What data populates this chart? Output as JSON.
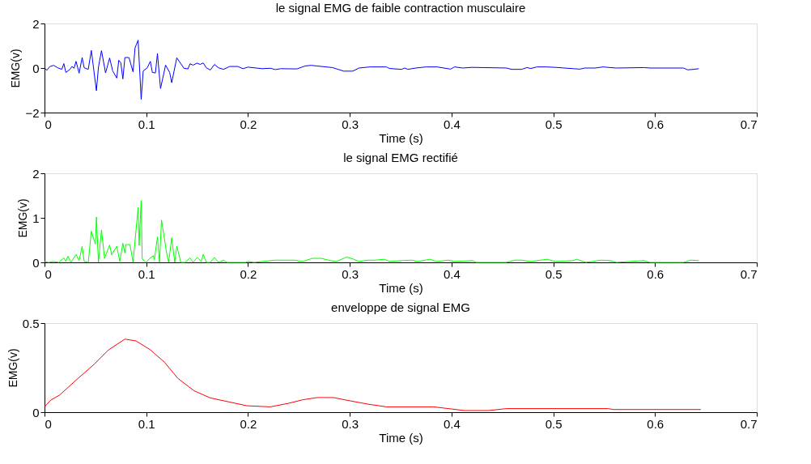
{
  "chart_data": [
    {
      "type": "line",
      "title": "le signal EMG de faible contraction musculaire",
      "xlabel": "Time (s)",
      "ylabel": "EMG(v)",
      "xlim": [
        0,
        0.7
      ],
      "xticks": [
        0,
        0.1,
        0.2,
        0.3,
        0.4,
        0.5,
        0.6,
        0.7
      ],
      "ylim": [
        -2,
        2
      ],
      "yticks": [
        -2,
        0,
        2
      ],
      "series": [
        {
          "color": "#0000ff",
          "x": [
            0,
            0.0024,
            0.005,
            0.009,
            0.013,
            0.017,
            0.019,
            0.021,
            0.025,
            0.027,
            0.029,
            0.031,
            0.034,
            0.037,
            0.039,
            0.043,
            0.046,
            0.051,
            0.053,
            0.056,
            0.06,
            0.064,
            0.067,
            0.071,
            0.073,
            0.075,
            0.077,
            0.079,
            0.083,
            0.087,
            0.089,
            0.092,
            0.095,
            0.097,
            0.101,
            0.104,
            0.106,
            0.109,
            0.111,
            0.114,
            0.119,
            0.123,
            0.125,
            0.13,
            0.137,
            0.141,
            0.143,
            0.146,
            0.15,
            0.153,
            0.156,
            0.159,
            0.163,
            0.167,
            0.171,
            0.176,
            0.182,
            0.19,
            0.195,
            0.2,
            0.206,
            0.214,
            0.222,
            0.227,
            0.232,
            0.248,
            0.256,
            0.262,
            0.268,
            0.283,
            0.294,
            0.303,
            0.309,
            0.32,
            0.336,
            0.339,
            0.351,
            0.354,
            0.357,
            0.365,
            0.375,
            0.386,
            0.399,
            0.403,
            0.411,
            0.42,
            0.454,
            0.459,
            0.469,
            0.474,
            0.478,
            0.484,
            0.493,
            0.502,
            0.52,
            0.526,
            0.531,
            0.541,
            0.549,
            0.556,
            0.562,
            0.589,
            0.595,
            0.628,
            0.632,
            0.638,
            0.643
          ],
          "values": [
            0,
            -0.1,
            0.06,
            0.12,
            0.01,
            -0.06,
            0.2,
            -0.2,
            -0.06,
            0.07,
            -0.01,
            0.3,
            -0.23,
            0.47,
            0.01,
            -0.06,
            0.79,
            -1.02,
            0.04,
            0.78,
            -0.22,
            0.45,
            -0.13,
            -0.45,
            0.35,
            0.23,
            -0.49,
            0.47,
            0.47,
            -0.17,
            0.91,
            1.25,
            -1.41,
            -0.13,
            0.01,
            0.3,
            -0.2,
            -0.22,
            0.65,
            -0.92,
            0.13,
            -0.2,
            -0.66,
            0.46,
            -0.01,
            -0.04,
            0.19,
            0.13,
            0.22,
            0.16,
            0.23,
            0.01,
            -0.09,
            0.16,
            0.01,
            -0.06,
            0.07,
            0.07,
            -0.03,
            0.04,
            0.01,
            -0.03,
            -0.01,
            -0.07,
            -0.03,
            -0.04,
            0.09,
            0.12,
            0.09,
            0.02,
            -0.14,
            -0.14,
            0,
            0.05,
            0.05,
            -0.02,
            -0.06,
            0,
            -0.06,
            0,
            0.05,
            0.05,
            -0.05,
            0.05,
            0,
            0.03,
            0,
            -0.06,
            -0.06,
            0.02,
            -0.02,
            0.05,
            0.05,
            0.03,
            -0.03,
            -0.05,
            0,
            0,
            0.05,
            0.02,
            0,
            0.02,
            0,
            0,
            -0.08,
            -0.06,
            -0.03
          ]
        }
      ]
    },
    {
      "type": "line",
      "title": "le signal EMG rectifié",
      "xlabel": "Time (s)",
      "ylabel": "EMG(v)",
      "xlim": [
        0,
        0.7
      ],
      "xticks": [
        0,
        0.1,
        0.2,
        0.3,
        0.4,
        0.5,
        0.6,
        0.7
      ],
      "ylim": [
        0,
        2
      ],
      "yticks": [
        0,
        1,
        2
      ],
      "series": [
        {
          "color": "#00ff00",
          "x": [
            0,
            0.004,
            0.009,
            0.014,
            0.019,
            0.021,
            0.023,
            0.026,
            0.031,
            0.034,
            0.037,
            0.039,
            0.043,
            0.046,
            0.05,
            0.051,
            0.053,
            0.056,
            0.059,
            0.064,
            0.066,
            0.071,
            0.074,
            0.077,
            0.079,
            0.08,
            0.084,
            0.087,
            0.092,
            0.093,
            0.095,
            0.096,
            0.1,
            0.103,
            0.107,
            0.108,
            0.111,
            0.113,
            0.115,
            0.12,
            0.122,
            0.125,
            0.128,
            0.13,
            0.134,
            0.138,
            0.143,
            0.146,
            0.15,
            0.154,
            0.156,
            0.159,
            0.163,
            0.167,
            0.171,
            0.176,
            0.179,
            0.198,
            0.2,
            0.206,
            0.214,
            0.227,
            0.237,
            0.245,
            0.254,
            0.263,
            0.272,
            0.281,
            0.287,
            0.297,
            0.304,
            0.309,
            0.318,
            0.325,
            0.334,
            0.339,
            0.351,
            0.361,
            0.367,
            0.379,
            0.385,
            0.397,
            0.403,
            0.421,
            0.424,
            0.454,
            0.462,
            0.469,
            0.478,
            0.494,
            0.502,
            0.52,
            0.523,
            0.532,
            0.547,
            0.556,
            0.562,
            0.589,
            0.595,
            0.628,
            0.635,
            0.643
          ],
          "values": [
            0.02,
            0,
            0.02,
            0,
            0.1,
            0.02,
            0.14,
            0,
            0.18,
            0.04,
            0.36,
            0.02,
            0,
            0.7,
            0.41,
            1.02,
            0,
            0.73,
            0.09,
            0.39,
            0.17,
            0.36,
            0.02,
            0.43,
            0.21,
            0.4,
            0.4,
            0,
            1.23,
            0.38,
            1.39,
            0.08,
            0,
            0.08,
            0.15,
            0.06,
            0.57,
            0,
            0.95,
            0.21,
            0,
            0.55,
            0,
            0.36,
            0,
            0,
            0.1,
            0,
            0.11,
            0.02,
            0.18,
            0,
            0,
            0.11,
            0,
            0.05,
            0,
            0,
            0.02,
            0,
            0.02,
            0.05,
            0.05,
            0.05,
            0.02,
            0.09,
            0.09,
            0.04,
            0.02,
            0.12,
            0.07,
            0.02,
            0.05,
            0.05,
            0.07,
            0.02,
            0.04,
            0.05,
            0.02,
            0.07,
            0.02,
            0.05,
            0.02,
            0.04,
            0,
            0,
            0.05,
            0.05,
            0.02,
            0.07,
            0.02,
            0.04,
            0.07,
            0,
            0.05,
            0.04,
            0,
            0.04,
            0,
            0,
            0.05,
            0.04
          ]
        }
      ]
    },
    {
      "type": "line",
      "title": "enveloppe de signal EMG",
      "xlabel": "Time (s)",
      "ylabel": "EMG(v)",
      "xlim": [
        0,
        0.7
      ],
      "xticks": [
        0,
        0.1,
        0.2,
        0.3,
        0.4,
        0.5,
        0.6,
        0.7
      ],
      "ylim": [
        0,
        0.5
      ],
      "yticks": [
        0,
        0.5
      ],
      "series": [
        {
          "color": "#ff0000",
          "x": [
            0,
            0.006,
            0.015,
            0.031,
            0.049,
            0.063,
            0.079,
            0.09,
            0.104,
            0.118,
            0.131,
            0.147,
            0.163,
            0.181,
            0.199,
            0.222,
            0.24,
            0.254,
            0.268,
            0.284,
            0.3,
            0.318,
            0.336,
            0.382,
            0.4,
            0.413,
            0.436,
            0.454,
            0.554,
            0.559,
            0.645
          ],
          "values": [
            0.03,
            0.067,
            0.097,
            0.18,
            0.27,
            0.35,
            0.41,
            0.4,
            0.35,
            0.28,
            0.19,
            0.12,
            0.08,
            0.058,
            0.036,
            0.03,
            0.05,
            0.07,
            0.082,
            0.082,
            0.064,
            0.045,
            0.03,
            0.03,
            0.018,
            0.009,
            0.009,
            0.02,
            0.02,
            0.015,
            0.015
          ]
        }
      ]
    }
  ]
}
